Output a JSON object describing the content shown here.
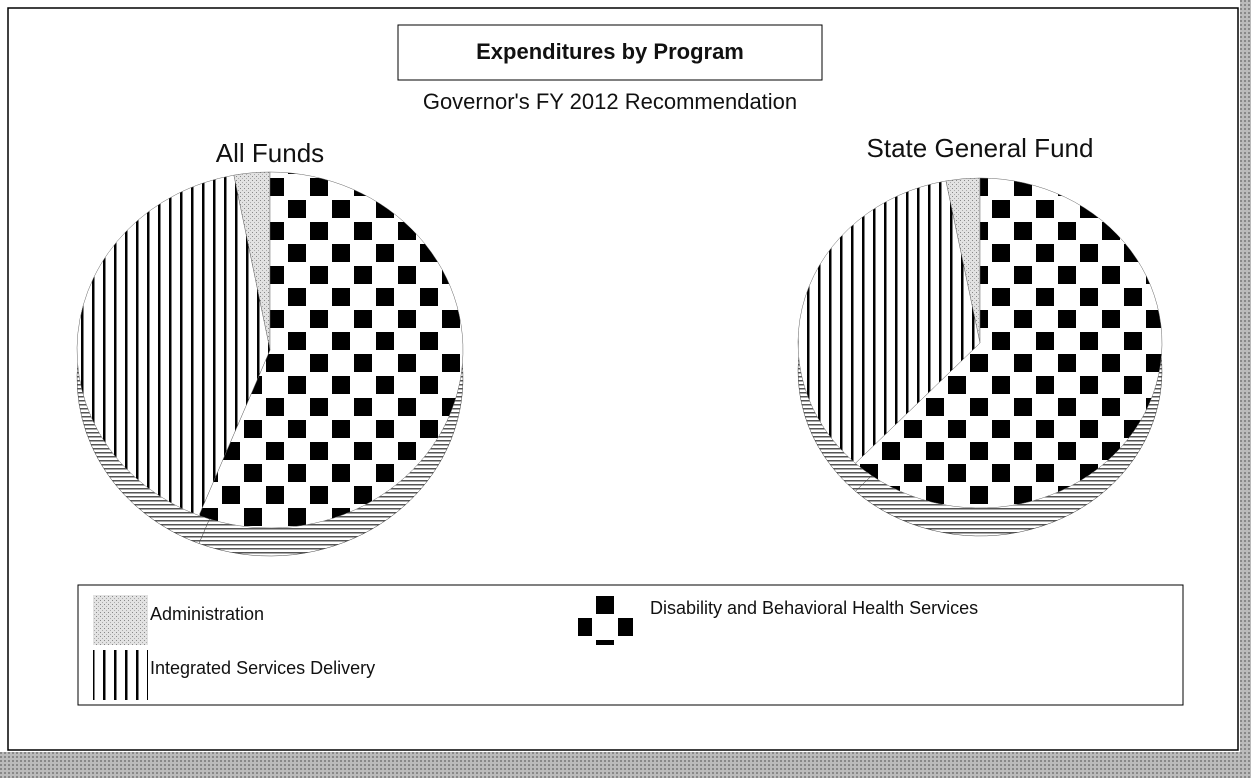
{
  "chart_data": {
    "type": "pie",
    "title": "Expenditures by Program",
    "subtitle": "Governor's FY 2012  Recommendation",
    "categories": [
      "Administration",
      "Disability and Behavioral Health Services",
      "Integrated Services Delivery"
    ],
    "patterns": [
      "dots",
      "checker",
      "stripes"
    ],
    "series": [
      {
        "name": "All Funds",
        "values": [
          3,
          56,
          41
        ]
      },
      {
        "name": "State General Fund",
        "values": [
          3,
          62,
          35
        ]
      }
    ]
  }
}
